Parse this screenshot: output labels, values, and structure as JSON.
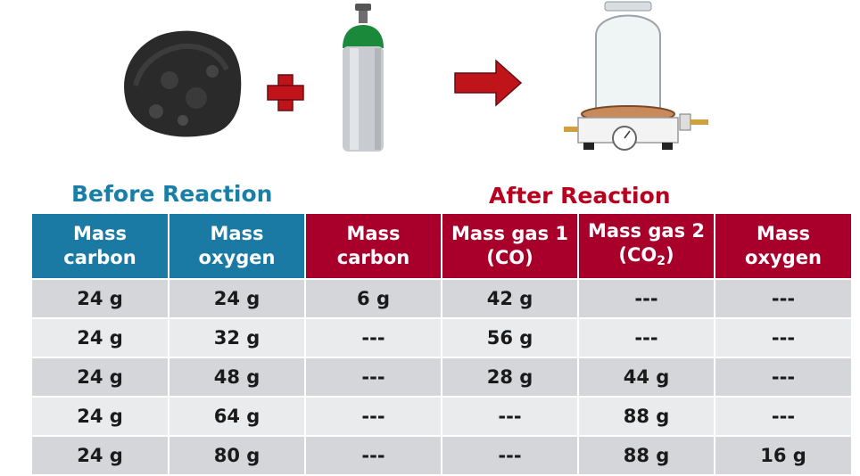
{
  "before_title": "Before Reaction",
  "after_title": "After Reaction",
  "illustration": {
    "items": [
      "carbon-powder-icon",
      "plus-icon",
      "oxygen-cylinder-icon",
      "arrow-right-icon",
      "bell-jar-vacuum-icon"
    ],
    "plus_color": "#c0141b",
    "arrow_color": "#c0141b",
    "cylinder_cap_color": "#1a8a3a"
  },
  "headers": {
    "before": [
      {
        "line1": "Mass",
        "line2": "carbon"
      },
      {
        "line1": "Mass",
        "line2": "oxygen"
      }
    ],
    "after": [
      {
        "line1": "Mass",
        "line2": "carbon"
      },
      {
        "line1": "Mass gas 1",
        "line2": "(CO)"
      },
      {
        "line1": "Mass gas 2",
        "line2_main": "(CO",
        "line2_sub": "2",
        "line2_end": ")"
      },
      {
        "line1": "Mass",
        "line2": "oxygen"
      }
    ]
  },
  "rows": [
    [
      "24 g",
      "24 g",
      "6 g",
      "42 g",
      "---",
      "---"
    ],
    [
      "24 g",
      "32 g",
      "---",
      "56 g",
      "---",
      "---"
    ],
    [
      "24 g",
      "48 g",
      "---",
      "28 g",
      "44 g",
      "---"
    ],
    [
      "24 g",
      "64 g",
      "---",
      "---",
      "88 g",
      "---"
    ],
    [
      "24 g",
      "80 g",
      "---",
      "---",
      "88 g",
      "16 g"
    ]
  ],
  "colors": {
    "before_header": "#1b7aa3",
    "after_header": "#a8002a",
    "before_title": "#1a7fa6",
    "after_title": "#b8001f",
    "row_dark": "#d4d6da",
    "row_light": "#e9ebed"
  }
}
